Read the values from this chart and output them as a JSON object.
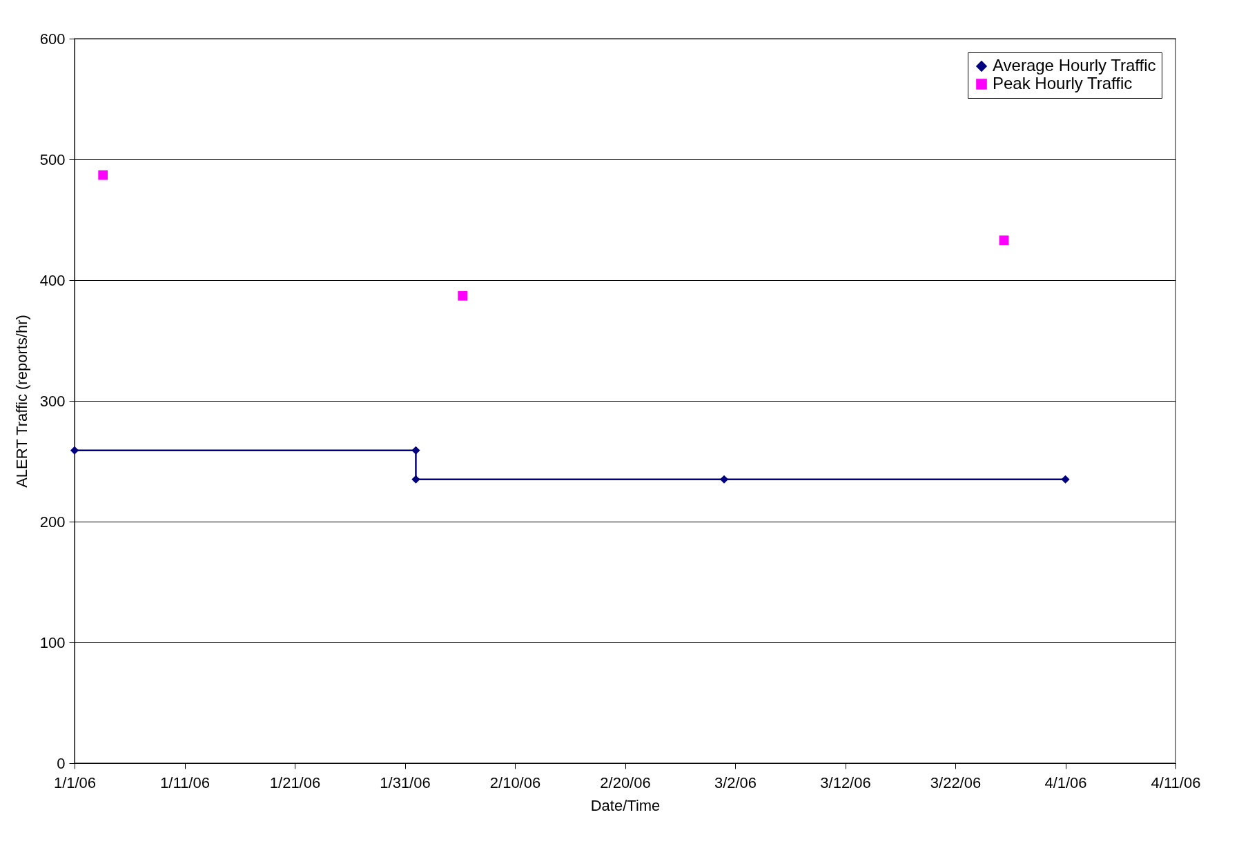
{
  "chart_data": {
    "type": "line",
    "xlabel": "Date/Time",
    "ylabel": "ALERT Traffic (reports/hr)",
    "xlim": [
      "--01-01",
      "--04-11"
    ],
    "xticks": [
      {
        "value": "--01-01",
        "label": "1/1/06"
      },
      {
        "value": "--01-11",
        "label": "1/11/06"
      },
      {
        "value": "--01-21",
        "label": "1/21/06"
      },
      {
        "value": "--01-31",
        "label": "1/31/06"
      },
      {
        "value": "--02-10",
        "label": "2/10/06"
      },
      {
        "value": "--02-20",
        "label": "2/20/06"
      },
      {
        "value": "--03-02",
        "label": "3/2/06"
      },
      {
        "value": "--03-12",
        "label": "3/12/06"
      },
      {
        "value": "--03-22",
        "label": "3/22/06"
      },
      {
        "value": "--04-01",
        "label": "4/1/06"
      },
      {
        "value": "--04-11",
        "label": "4/11/06"
      }
    ],
    "ylim": [
      0,
      600
    ],
    "yticks": [
      0,
      100,
      200,
      300,
      400,
      500,
      600
    ],
    "grid": "y",
    "legend": "top right",
    "series": [
      {
        "name": "Average Hourly Traffic",
        "type": "line",
        "marker": "diamond",
        "line_style": "solid",
        "color": "#000080",
        "x": [
          "--01-01",
          "--02-01",
          "--02-01",
          "--03-01",
          "--04-01"
        ],
        "values": [
          259,
          259,
          235,
          235,
          235
        ]
      },
      {
        "name": "Peak Hourly Traffic",
        "type": "scatter",
        "marker": "square",
        "color": "#ff00ff",
        "x": [
          "--01-03T14:00",
          "--02-05T06:00",
          "--03-26T10:00"
        ],
        "values": [
          487,
          387,
          433
        ]
      }
    ]
  }
}
